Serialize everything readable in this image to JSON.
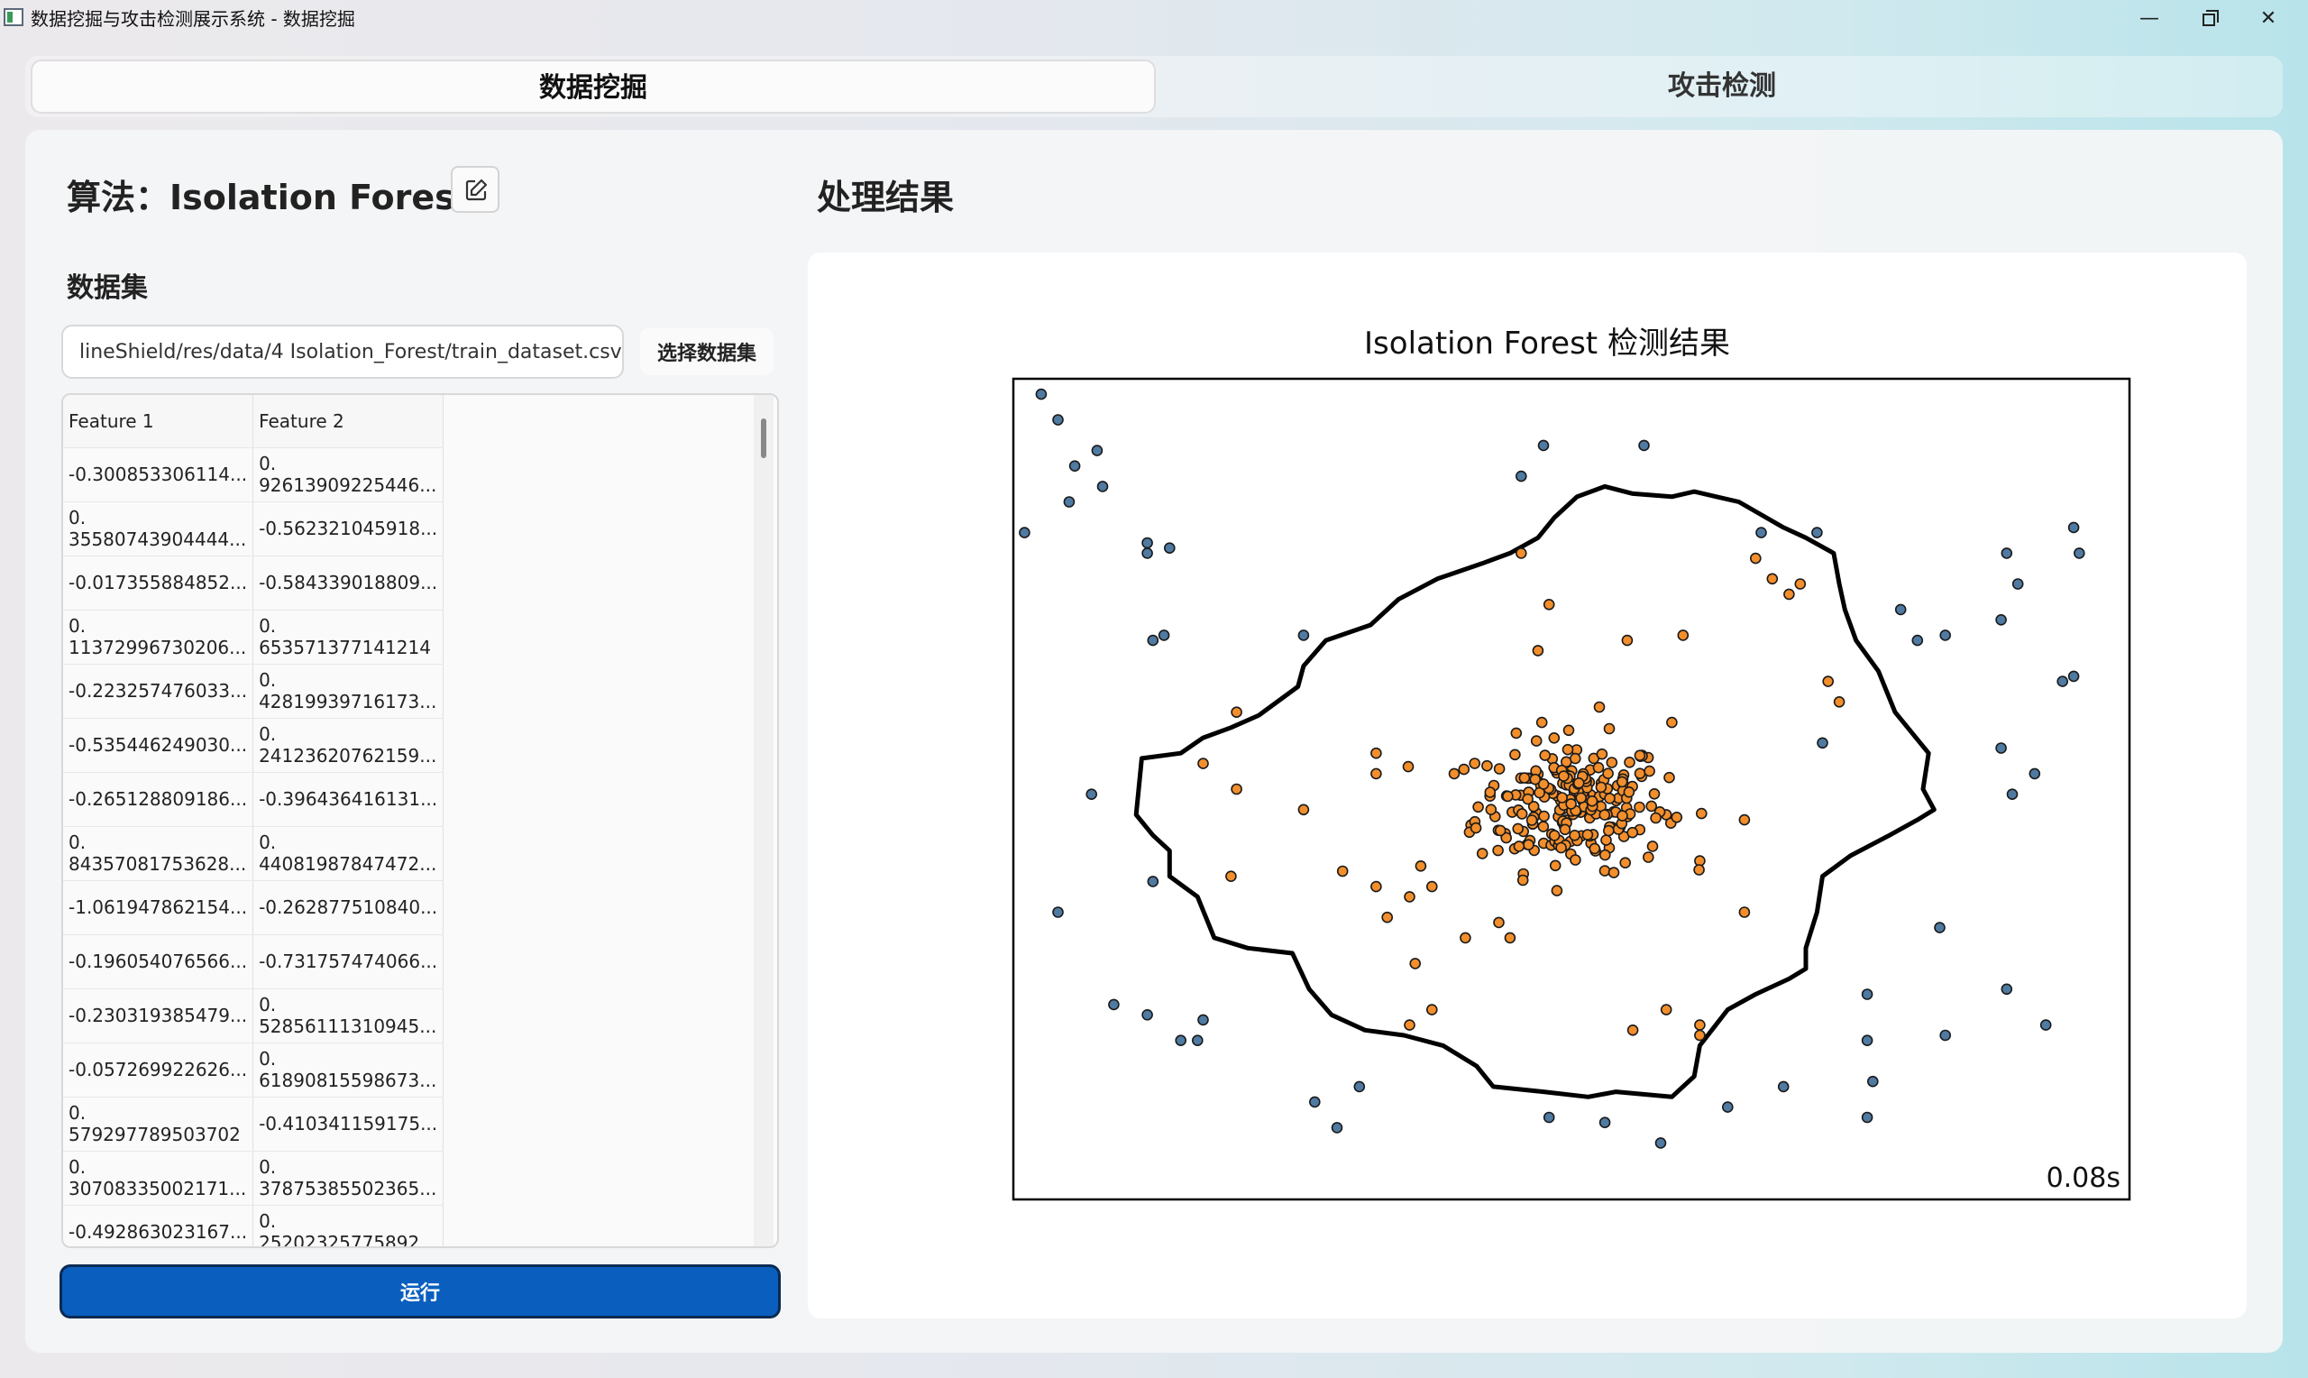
{
  "window": {
    "title": "数据挖掘与攻击检测展示系统 - 数据挖掘",
    "min_glyph": "—",
    "close_glyph": "✕"
  },
  "tabs": [
    {
      "label": "数据挖掘",
      "active": true
    },
    {
      "label": "攻击检测",
      "active": false
    }
  ],
  "left": {
    "algorithm_title": "算法：Isolation Forest",
    "dataset_label": "数据集",
    "dataset_path": "lineShield/res/data/4 Isolation_Forest/train_dataset.csv",
    "choose_button": "选择数据集",
    "run_button": "运行"
  },
  "table": {
    "headers": [
      "Feature 1",
      "Feature 2"
    ],
    "rows": [
      [
        "-0.300853306114...",
        "0.\n92613909225446..."
      ],
      [
        "0.\n35580743904444...",
        "-0.562321045918..."
      ],
      [
        "-0.017355884852...",
        "-0.584339018809..."
      ],
      [
        "0.\n11372996730206...",
        "0.\n653571377141214"
      ],
      [
        "-0.223257476033...",
        "0.\n42819939716173..."
      ],
      [
        "-0.535446249030...",
        "0.\n24123620762159..."
      ],
      [
        "-0.265128809186...",
        "-0.396436416131..."
      ],
      [
        "0.\n84357081753628...",
        "0.\n44081987847472..."
      ],
      [
        "-1.061947862154...",
        "-0.262877510840..."
      ],
      [
        "-0.196054076566...",
        "-0.731757474066..."
      ],
      [
        "-0.230319385479...",
        "0.\n52856111310945..."
      ],
      [
        "-0.057269922626...",
        "0.\n61890815598673..."
      ],
      [
        "0.\n579297789503702",
        "-0.410341159175..."
      ],
      [
        "0.\n30708335002171...",
        "0.\n37875385502365..."
      ],
      [
        "-0.492863023167...",
        "0.\n25202325775892..."
      ]
    ]
  },
  "right": {
    "result_title": "处理结果"
  },
  "chart_data": {
    "type": "scatter",
    "title": "Isolation Forest 检测结果",
    "annotation": "0.08s",
    "xlim": [
      -5,
      5
    ],
    "ylim": [
      -4,
      4
    ],
    "grid": false,
    "colors": {
      "outlier": "#4f7aa2",
      "inlier": "#f28e2b",
      "edge": "#1a1a1a",
      "boundary": "#000000"
    },
    "boundary": [
      [
        -3.85,
        0.3
      ],
      [
        -3.5,
        0.35
      ],
      [
        -3.3,
        0.5
      ],
      [
        -3.05,
        0.6
      ],
      [
        -2.8,
        0.72
      ],
      [
        -2.45,
        1.0
      ],
      [
        -2.4,
        1.2
      ],
      [
        -2.2,
        1.45
      ],
      [
        -1.8,
        1.6
      ],
      [
        -1.55,
        1.85
      ],
      [
        -1.2,
        2.05
      ],
      [
        -0.8,
        2.2
      ],
      [
        -0.55,
        2.3
      ],
      [
        -0.3,
        2.45
      ],
      [
        -0.15,
        2.65
      ],
      [
        0.05,
        2.85
      ],
      [
        0.3,
        2.95
      ],
      [
        0.55,
        2.88
      ],
      [
        0.9,
        2.85
      ],
      [
        1.1,
        2.9
      ],
      [
        1.5,
        2.8
      ],
      [
        1.9,
        2.55
      ],
      [
        2.1,
        2.45
      ],
      [
        2.35,
        2.3
      ],
      [
        2.4,
        2.0
      ],
      [
        2.45,
        1.75
      ],
      [
        2.55,
        1.45
      ],
      [
        2.75,
        1.15
      ],
      [
        2.9,
        0.75
      ],
      [
        3.2,
        0.35
      ],
      [
        3.15,
        0.0
      ],
      [
        3.25,
        -0.2
      ],
      [
        3.1,
        -0.3
      ],
      [
        2.85,
        -0.45
      ],
      [
        2.5,
        -0.65
      ],
      [
        2.25,
        -0.85
      ],
      [
        2.2,
        -1.2
      ],
      [
        2.1,
        -1.55
      ],
      [
        2.1,
        -1.75
      ],
      [
        1.95,
        -1.85
      ],
      [
        1.65,
        -2.0
      ],
      [
        1.4,
        -2.15
      ],
      [
        1.15,
        -2.5
      ],
      [
        1.1,
        -2.8
      ],
      [
        0.9,
        -3.0
      ],
      [
        0.4,
        -2.95
      ],
      [
        0.15,
        -3.0
      ],
      [
        -0.25,
        -2.95
      ],
      [
        -0.7,
        -2.9
      ],
      [
        -0.85,
        -2.7
      ],
      [
        -1.15,
        -2.5
      ],
      [
        -1.5,
        -2.4
      ],
      [
        -1.85,
        -2.35
      ],
      [
        -2.15,
        -2.2
      ],
      [
        -2.35,
        -1.95
      ],
      [
        -2.5,
        -1.6
      ],
      [
        -2.9,
        -1.55
      ],
      [
        -3.2,
        -1.45
      ],
      [
        -3.35,
        -1.05
      ],
      [
        -3.6,
        -0.85
      ],
      [
        -3.6,
        -0.6
      ],
      [
        -3.75,
        -0.45
      ],
      [
        -3.9,
        -0.25
      ],
      [
        -3.85,
        0.3
      ]
    ],
    "outliers": [
      [
        -4.75,
        3.85
      ],
      [
        -4.6,
        3.6
      ],
      [
        -4.25,
        3.3
      ],
      [
        -4.45,
        3.15
      ],
      [
        -4.5,
        2.8
      ],
      [
        -4.2,
        2.95
      ],
      [
        -4.9,
        2.5
      ],
      [
        -3.8,
        2.4
      ],
      [
        -3.8,
        2.3
      ],
      [
        -3.6,
        2.35
      ],
      [
        -3.75,
        1.45
      ],
      [
        -3.65,
        1.5
      ],
      [
        -2.4,
        1.5
      ],
      [
        -4.3,
        -0.05
      ],
      [
        -3.75,
        -0.9
      ],
      [
        -4.6,
        -1.2
      ],
      [
        -4.1,
        -2.1
      ],
      [
        -3.8,
        -2.2
      ],
      [
        -3.5,
        -2.45
      ],
      [
        -3.35,
        -2.45
      ],
      [
        -3.3,
        -2.25
      ],
      [
        -2.3,
        -3.05
      ],
      [
        -2.1,
        -3.3
      ],
      [
        -1.9,
        -2.9
      ],
      [
        -0.2,
        -3.2
      ],
      [
        0.3,
        -3.25
      ],
      [
        0.8,
        -3.45
      ],
      [
        1.4,
        -3.1
      ],
      [
        1.9,
        -2.9
      ],
      [
        2.65,
        -3.2
      ],
      [
        2.7,
        -2.85
      ],
      [
        2.65,
        -2.45
      ],
      [
        2.65,
        -2.0
      ],
      [
        3.3,
        -1.35
      ],
      [
        3.35,
        -2.4
      ],
      [
        3.9,
        -1.95
      ],
      [
        4.25,
        -2.3
      ],
      [
        3.95,
        -0.05
      ],
      [
        3.35,
        1.5
      ],
      [
        3.1,
        1.45
      ],
      [
        3.85,
        0.4
      ],
      [
        4.15,
        0.15
      ],
      [
        2.25,
        0.45
      ],
      [
        2.95,
        1.75
      ],
      [
        4.0,
        2.0
      ],
      [
        4.5,
        1.1
      ],
      [
        4.55,
        2.3
      ],
      [
        4.4,
        1.05
      ],
      [
        4.5,
        2.55
      ],
      [
        3.9,
        2.3
      ],
      [
        3.85,
        1.65
      ],
      [
        1.7,
        2.5
      ],
      [
        2.2,
        2.5
      ],
      [
        0.65,
        3.35
      ],
      [
        -0.45,
        3.05
      ],
      [
        -0.25,
        3.35
      ]
    ],
    "inliers": [
      [
        -0.45,
        2.3
      ],
      [
        -0.2,
        1.8
      ],
      [
        0.5,
        1.45
      ],
      [
        1.0,
        1.5
      ],
      [
        1.65,
        2.25
      ],
      [
        1.95,
        1.9
      ],
      [
        1.8,
        2.05
      ],
      [
        2.05,
        2.0
      ],
      [
        2.4,
        0.85
      ],
      [
        2.3,
        1.05
      ],
      [
        -3.0,
        0.75
      ],
      [
        -3.3,
        0.25
      ],
      [
        -3.0,
        0.0
      ],
      [
        -2.4,
        -0.2
      ],
      [
        -3.05,
        -0.85
      ],
      [
        -1.75,
        0.15
      ],
      [
        -1.75,
        0.35
      ],
      [
        -1.05,
        0.15
      ],
      [
        -1.25,
        -0.95
      ],
      [
        -1.45,
        -1.05
      ],
      [
        -1.75,
        -0.95
      ],
      [
        -1.65,
        -1.25
      ],
      [
        -1.4,
        -1.7
      ],
      [
        -0.95,
        -1.45
      ],
      [
        -0.65,
        -1.3
      ],
      [
        -0.55,
        -1.45
      ],
      [
        -2.05,
        -0.8
      ],
      [
        0.85,
        -0.25
      ],
      [
        1.55,
        -0.3
      ],
      [
        1.15,
        -0.7
      ],
      [
        1.55,
        -1.2
      ],
      [
        0.85,
        -2.15
      ],
      [
        1.15,
        -2.3
      ],
      [
        1.15,
        -2.4
      ],
      [
        -0.9,
        -0.35
      ],
      [
        -1.35,
        -0.75
      ],
      [
        -1.45,
        -2.3
      ],
      [
        -1.25,
        -2.15
      ],
      [
        0.55,
        -2.35
      ],
      [
        0.2,
        0.3
      ],
      [
        0.25,
        0.8
      ],
      [
        -0.3,
        1.35
      ],
      [
        0.9,
        0.65
      ]
    ]
  }
}
